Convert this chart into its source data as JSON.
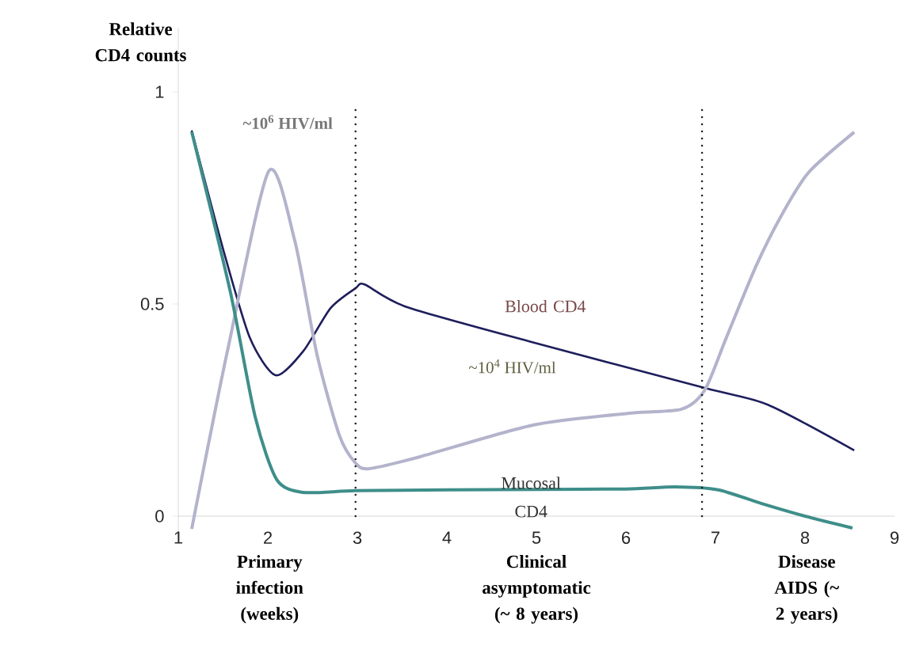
{
  "chart_data": {
    "type": "line",
    "ylabel": "Relative CD4 counts",
    "xlim": [
      1,
      9
    ],
    "ylim": [
      -0.05,
      1.15
    ],
    "xticks": [
      1,
      2,
      3,
      4,
      5,
      6,
      7,
      8,
      9
    ],
    "yticks": [
      0,
      0.5,
      1
    ],
    "legend": false,
    "grid": false,
    "marker": "none",
    "line_style": "solid",
    "series": [
      {
        "name": "Blood CD4",
        "color": "#1e1e5c",
        "x": [
          1.15,
          1.5,
          1.8,
          2.09,
          2.4,
          2.7,
          2.98,
          3.08,
          3.55,
          4.97,
          6.88,
          7.58,
          8.55
        ],
        "values": [
          0.909,
          0.63,
          0.42,
          0.332,
          0.39,
          0.49,
          0.537,
          0.546,
          0.493,
          0.409,
          0.302,
          0.263,
          0.155
        ]
      },
      {
        "color": "#b3b3cc",
        "x": [
          1.15,
          1.55,
          2.01,
          2.3,
          2.55,
          2.8,
          2.98,
          3.13,
          3.7,
          4.97,
          6.06,
          6.62,
          6.88,
          7.12,
          7.45,
          7.74,
          8.04,
          8.55
        ],
        "values": [
          -0.03,
          0.39,
          0.813,
          0.65,
          0.38,
          0.19,
          0.125,
          0.112,
          0.14,
          0.215,
          0.243,
          0.252,
          0.297,
          0.42,
          0.588,
          0.71,
          0.81,
          0.905
        ]
      },
      {
        "name": "Mucosal CD4",
        "color": "#3e8e8a",
        "x": [
          1.15,
          1.58,
          1.86,
          2.1,
          2.39,
          2.98,
          4.0,
          5.0,
          6.0,
          6.55,
          7.03,
          7.51,
          8.0,
          8.53
        ],
        "values": [
          0.906,
          0.53,
          0.233,
          0.086,
          0.056,
          0.06,
          0.062,
          0.063,
          0.064,
          0.069,
          0.062,
          0.03,
          0.0,
          -0.028
        ]
      }
    ],
    "ref_lines": [
      {
        "axis": "x",
        "value": 2.98,
        "color": "#222222",
        "line_style": "dotted"
      },
      {
        "axis": "x",
        "value": 6.85,
        "color": "#222222",
        "line_style": "dotted"
      }
    ],
    "annotations": [
      {
        "text": "~10$^{6}$ HIV/ml",
        "x": 2.01,
        "y": 0.813
      },
      "~10$^{4}$ HIV/ml",
      "Primary infection (weeks)",
      "Clinical asymptomatic (~ 8 years)",
      "Disease AIDS (~ 2 years)"
    ]
  }
}
